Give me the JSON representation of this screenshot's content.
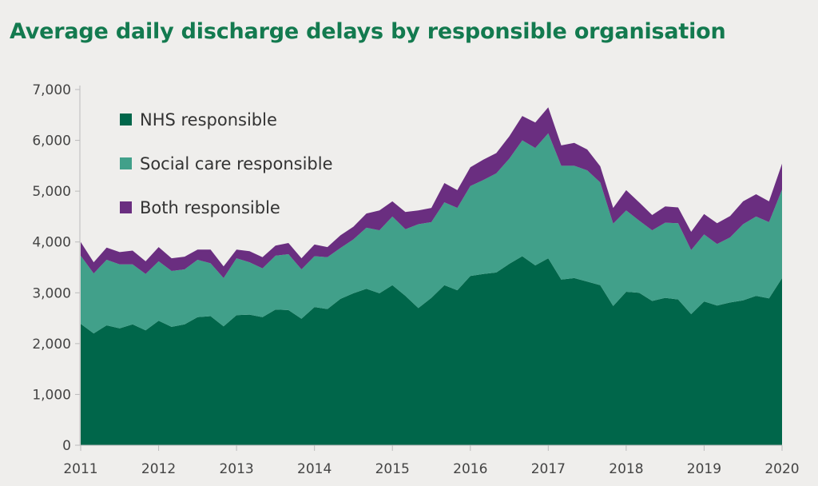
{
  "chart_data": {
    "type": "area",
    "stacked": true,
    "title": "Average daily discharge delays by responsible organisation",
    "xlabel": "",
    "ylabel": "",
    "ylim": [
      0,
      7000
    ],
    "yticks": [
      "0",
      "1,000",
      "2,000",
      "3,000",
      "4,000",
      "5,000",
      "6,000",
      "7,000"
    ],
    "xlim": [
      "2011-01",
      "2020-01"
    ],
    "xticks": [
      "2011",
      "2012",
      "2013",
      "2014",
      "2015",
      "2016",
      "2017",
      "2018",
      "2019",
      "2020"
    ],
    "grid": false,
    "legend_position": "top-left",
    "x": [
      "2011-01",
      "2011-03",
      "2011-05",
      "2011-07",
      "2011-09",
      "2011-11",
      "2012-01",
      "2012-03",
      "2012-05",
      "2012-07",
      "2012-09",
      "2012-11",
      "2013-01",
      "2013-03",
      "2013-05",
      "2013-07",
      "2013-09",
      "2013-11",
      "2014-01",
      "2014-03",
      "2014-05",
      "2014-07",
      "2014-09",
      "2014-11",
      "2015-01",
      "2015-03",
      "2015-05",
      "2015-07",
      "2015-09",
      "2015-11",
      "2016-01",
      "2016-03",
      "2016-05",
      "2016-07",
      "2016-09",
      "2016-11",
      "2017-01",
      "2017-03",
      "2017-05",
      "2017-07",
      "2017-09",
      "2017-11",
      "2018-01",
      "2018-03",
      "2018-05",
      "2018-07",
      "2018-09",
      "2018-11",
      "2019-01",
      "2019-03",
      "2019-05",
      "2019-07",
      "2019-09",
      "2019-11",
      "2020-01"
    ],
    "series": [
      {
        "name": "NHS responsible",
        "color": "#00664a",
        "values": [
          2390,
          2200,
          2360,
          2300,
          2380,
          2260,
          2450,
          2330,
          2380,
          2520,
          2540,
          2340,
          2560,
          2570,
          2520,
          2670,
          2660,
          2490,
          2720,
          2680,
          2880,
          2990,
          3080,
          2990,
          3150,
          2940,
          2700,
          2900,
          3150,
          3050,
          3330,
          3370,
          3400,
          3570,
          3720,
          3540,
          3680,
          3260,
          3290,
          3220,
          3150,
          2740,
          3020,
          3000,
          2840,
          2900,
          2870,
          2580,
          2830,
          2750,
          2810,
          2850,
          2940,
          2890,
          3290
        ]
      },
      {
        "name": "Social care responsible",
        "color": "#41a08a",
        "values": [
          1340,
          1180,
          1290,
          1260,
          1180,
          1110,
          1170,
          1100,
          1080,
          1130,
          1040,
          950,
          1120,
          1030,
          960,
          1060,
          1100,
          970,
          1000,
          1020,
          1000,
          1060,
          1200,
          1240,
          1350,
          1310,
          1650,
          1490,
          1630,
          1620,
          1770,
          1850,
          1950,
          2070,
          2280,
          2310,
          2460,
          2240,
          2210,
          2190,
          2020,
          1620,
          1600,
          1420,
          1390,
          1480,
          1500,
          1260,
          1320,
          1210,
          1280,
          1500,
          1560,
          1500,
          1740
        ]
      },
      {
        "name": "Both responsible",
        "color": "#6a2e80",
        "values": [
          270,
          220,
          240,
          240,
          270,
          250,
          280,
          250,
          250,
          200,
          270,
          230,
          170,
          220,
          220,
          200,
          220,
          220,
          230,
          200,
          250,
          250,
          280,
          390,
          300,
          340,
          270,
          280,
          380,
          350,
          370,
          400,
          400,
          440,
          480,
          500,
          510,
          400,
          450,
          410,
          320,
          310,
          400,
          360,
          300,
          320,
          310,
          360,
          400,
          410,
          420,
          450,
          440,
          410,
          510
        ]
      }
    ]
  }
}
